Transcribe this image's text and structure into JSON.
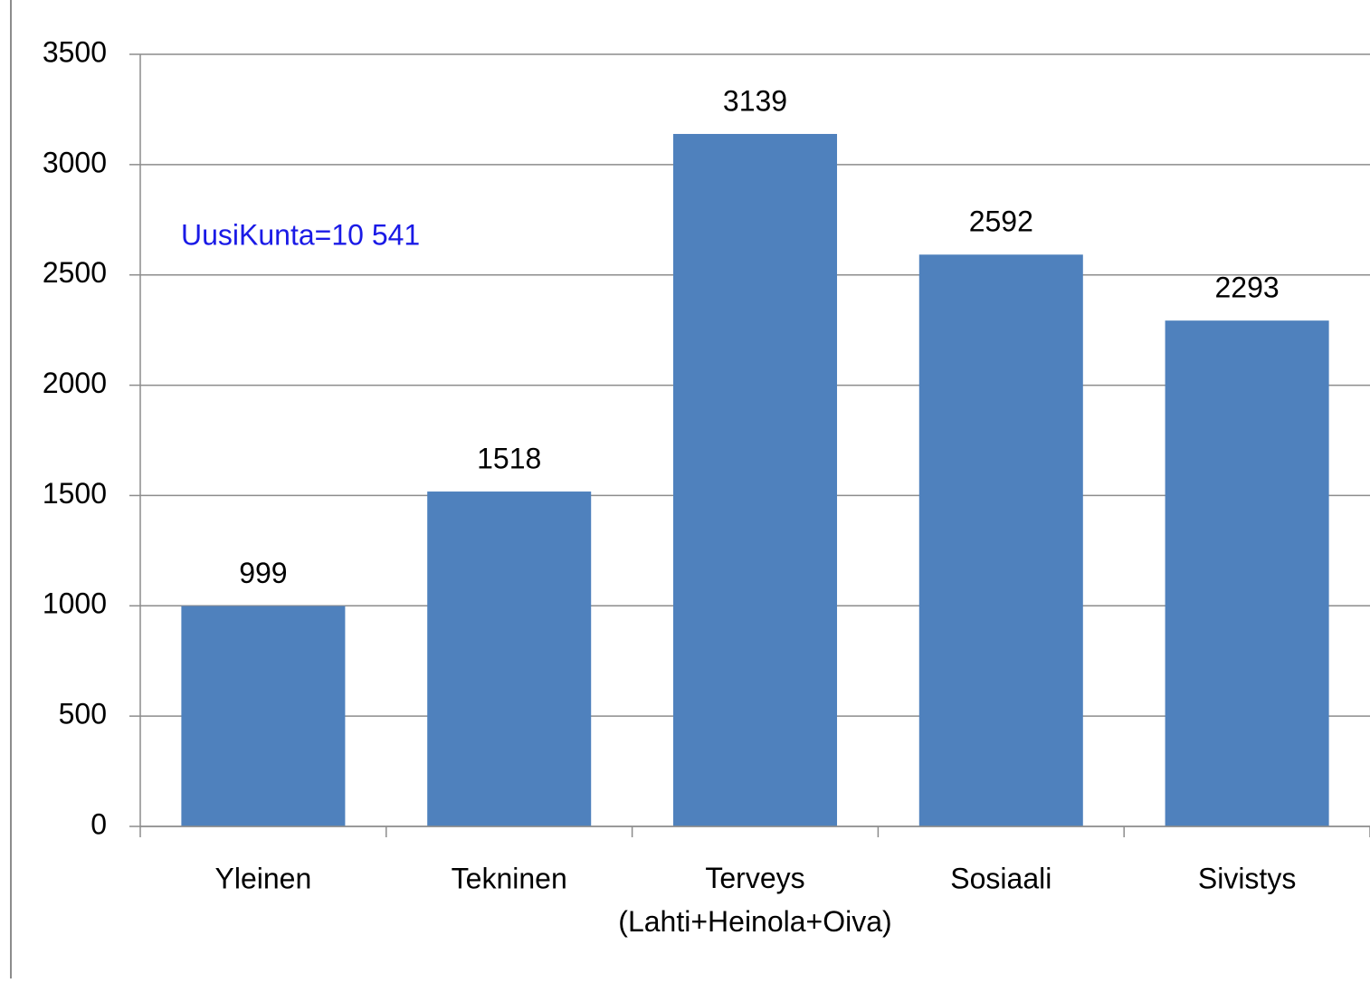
{
  "chart_data": {
    "type": "bar",
    "categories": [
      "Yleinen",
      "Tekninen",
      "Terveys (Lahti+Heinola+Oiva)",
      "Sosiaali",
      "Sivistys"
    ],
    "values": [
      999,
      1518,
      3139,
      2592,
      2293
    ],
    "color": "#4f81bd",
    "ylim": [
      0,
      3500
    ],
    "yticks": [
      0,
      500,
      1000,
      1500,
      2000,
      2500,
      3000,
      3500
    ],
    "grid": true,
    "annotation": "UusiKunta=10 541",
    "annotation_color": "#1a1ae6"
  }
}
